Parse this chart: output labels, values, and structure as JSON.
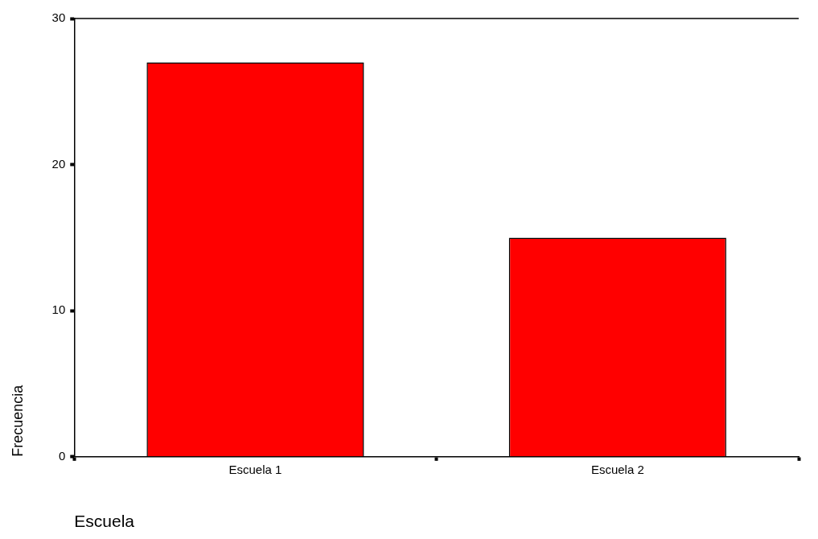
{
  "chart_data": {
    "type": "bar",
    "xlabel": "Escuela",
    "ylabel": "Frecuencia",
    "categories": [
      "Escuela 1",
      "Escuela 2"
    ],
    "values": [
      27,
      15
    ],
    "color": "#ff0000",
    "ylim": [
      0,
      30
    ],
    "yticks": [
      0,
      10,
      20,
      30
    ],
    "grid": false,
    "legend": false
  }
}
